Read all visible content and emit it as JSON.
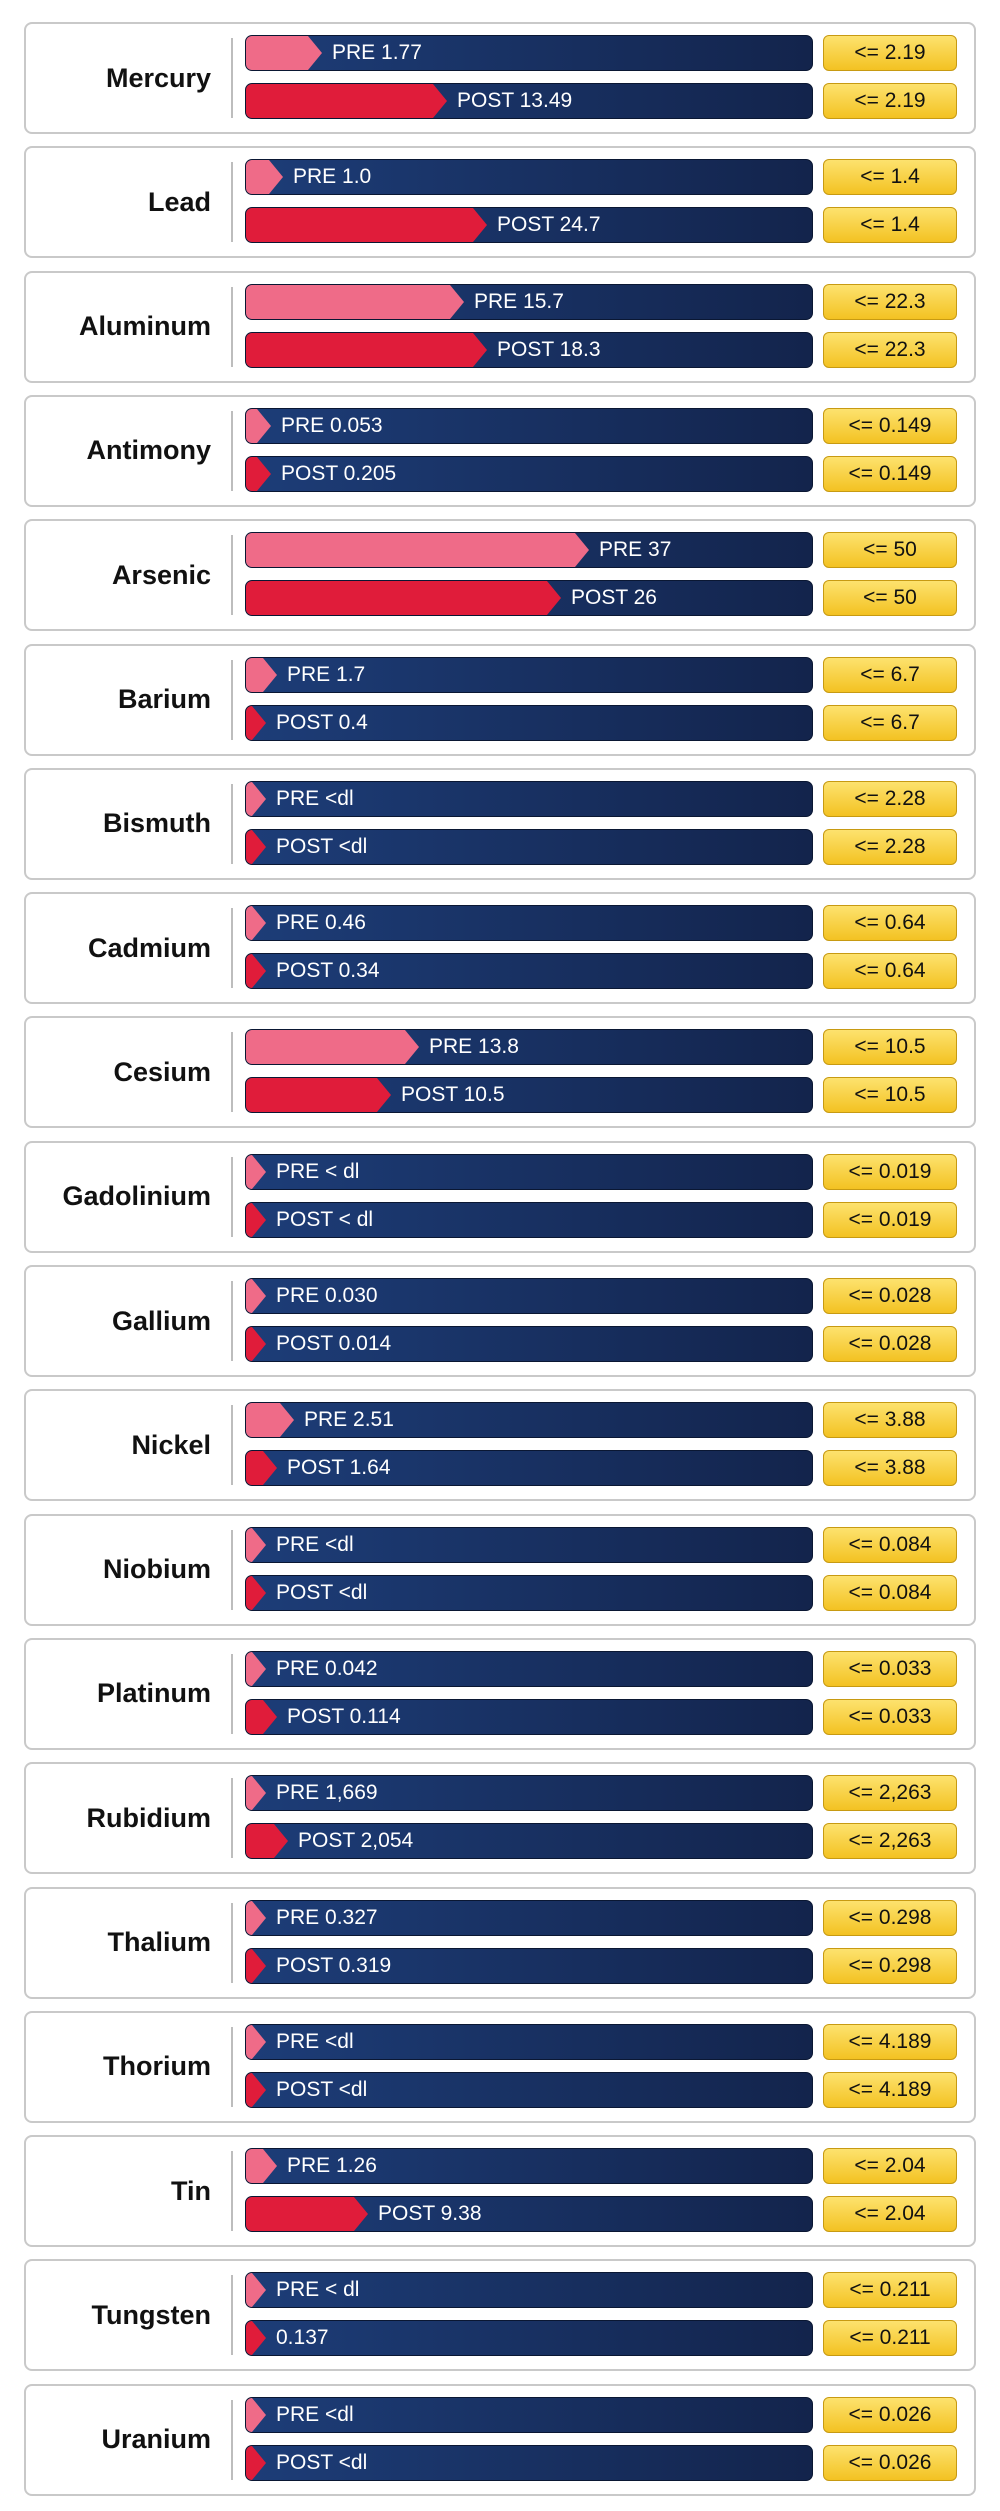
{
  "chart_data": {
    "type": "bar",
    "series": [
      {
        "name": "PRE"
      },
      {
        "name": "POST"
      }
    ],
    "rows": [
      {
        "element": "Mercury",
        "pre": "PRE 1.77",
        "post": "POST 13.49",
        "limit": "<= 2.19",
        "pre_value": 1.77,
        "post_value": 13.49,
        "max": 2.19,
        "pre_frac": 0.11,
        "post_frac": 0.33
      },
      {
        "element": "Lead",
        "pre": "PRE  1.0",
        "post": "POST 24.7",
        "limit": "<= 1.4",
        "pre_value": 1.0,
        "post_value": 24.7,
        "max": 1.4,
        "pre_frac": 0.04,
        "post_frac": 0.4
      },
      {
        "element": "Aluminum",
        "pre": "PRE 15.7",
        "post": "POST 18.3",
        "limit": "<= 22.3",
        "pre_value": 15.7,
        "post_value": 18.3,
        "max": 22.3,
        "pre_frac": 0.36,
        "post_frac": 0.4
      },
      {
        "element": "Antimony",
        "pre": "PRE 0.053",
        "post": "POST 0.205",
        "limit": "<= 0.149",
        "pre_value": 0.053,
        "post_value": 0.205,
        "max": 0.149,
        "pre_frac": 0.02,
        "post_frac": 0.02
      },
      {
        "element": "Arsenic",
        "pre": "PRE 37",
        "post": "POST 26",
        "limit": "<= 50",
        "pre_value": 37,
        "post_value": 26,
        "max": 50,
        "pre_frac": 0.58,
        "post_frac": 0.53
      },
      {
        "element": "Barium",
        "pre": "PRE 1.7",
        "post": "POST 0.4",
        "limit": "<= 6.7",
        "pre_value": 1.7,
        "post_value": 0.4,
        "max": 6.7,
        "pre_frac": 0.03,
        "post_frac": 0.01
      },
      {
        "element": "Bismuth",
        "pre": "PRE <dl",
        "post": "POST <dl",
        "limit": "<= 2.28",
        "pre_value": null,
        "post_value": null,
        "max": 2.28,
        "pre_frac": 0.01,
        "post_frac": 0.01
      },
      {
        "element": "Cadmium",
        "pre": "PRE 0.46",
        "post": "POST 0.34",
        "limit": "<= 0.64",
        "pre_value": 0.46,
        "post_value": 0.34,
        "max": 0.64,
        "pre_frac": 0.01,
        "post_frac": 0.01
      },
      {
        "element": "Cesium",
        "pre": "PRE 13.8",
        "post": "POST 10.5",
        "limit": "<= 10.5",
        "pre_value": 13.8,
        "post_value": 10.5,
        "max": 10.5,
        "pre_frac": 0.28,
        "post_frac": 0.23
      },
      {
        "element": "Gadolinium",
        "pre": "PRE < dl",
        "post": "POST < dl",
        "limit": "<= 0.019",
        "pre_value": null,
        "post_value": null,
        "max": 0.019,
        "pre_frac": 0.01,
        "post_frac": 0.01
      },
      {
        "element": "Gallium",
        "pre": "PRE 0.030",
        "post": "POST 0.014",
        "limit": "<= 0.028",
        "pre_value": 0.03,
        "post_value": 0.014,
        "max": 0.028,
        "pre_frac": 0.01,
        "post_frac": 0.01
      },
      {
        "element": "Nickel",
        "pre": "PRE 2.51",
        "post": "POST 1.64",
        "limit": "<= 3.88",
        "pre_value": 2.51,
        "post_value": 1.64,
        "max": 3.88,
        "pre_frac": 0.06,
        "post_frac": 0.03
      },
      {
        "element": "Niobium",
        "pre": "PRE <dl",
        "post": "POST <dl",
        "limit": "<= 0.084",
        "pre_value": null,
        "post_value": null,
        "max": 0.084,
        "pre_frac": 0.01,
        "post_frac": 0.01
      },
      {
        "element": "Platinum",
        "pre": "PRE 0.042",
        "post": "POST 0.114",
        "limit": "<= 0.033",
        "pre_value": 0.042,
        "post_value": 0.114,
        "max": 0.033,
        "pre_frac": 0.01,
        "post_frac": 0.03
      },
      {
        "element": "Rubidium",
        "pre": "PRE 1,669",
        "post": "POST 2,054",
        "limit": "<= 2,263",
        "pre_value": 1669,
        "post_value": 2054,
        "max": 2263,
        "pre_frac": 0.01,
        "post_frac": 0.05
      },
      {
        "element": "Thalium",
        "pre": "PRE 0.327",
        "post": "POST 0.319",
        "limit": "<= 0.298",
        "pre_value": 0.327,
        "post_value": 0.319,
        "max": 0.298,
        "pre_frac": 0.01,
        "post_frac": 0.01
      },
      {
        "element": "Thorium",
        "pre": "PRE <dl",
        "post": "POST <dl",
        "limit": "<= 4.189",
        "pre_value": null,
        "post_value": null,
        "max": 4.189,
        "pre_frac": 0.01,
        "post_frac": 0.01
      },
      {
        "element": "Tin",
        "pre": "PRE 1.26",
        "post": "POST 9.38",
        "limit": "<= 2.04",
        "pre_value": 1.26,
        "post_value": 9.38,
        "max": 2.04,
        "pre_frac": 0.03,
        "post_frac": 0.19
      },
      {
        "element": "Tungsten",
        "pre": "PRE < dl",
        "post": "0.137",
        "limit": "<= 0.211",
        "pre_value": null,
        "post_value": 0.137,
        "max": 0.211,
        "pre_frac": 0.01,
        "post_frac": 0.01
      },
      {
        "element": "Uranium",
        "pre": "PRE <dl",
        "post": "POST <dl",
        "limit": "<= 0.026",
        "pre_value": null,
        "post_value": null,
        "max": 0.026,
        "pre_frac": 0.01,
        "post_frac": 0.01
      }
    ]
  },
  "colors": {
    "pre": "#ef6b88",
    "post": "#e01c3a",
    "track": "#1a3366",
    "limit": "#f7cd37",
    "border": "#c9c9c9"
  }
}
